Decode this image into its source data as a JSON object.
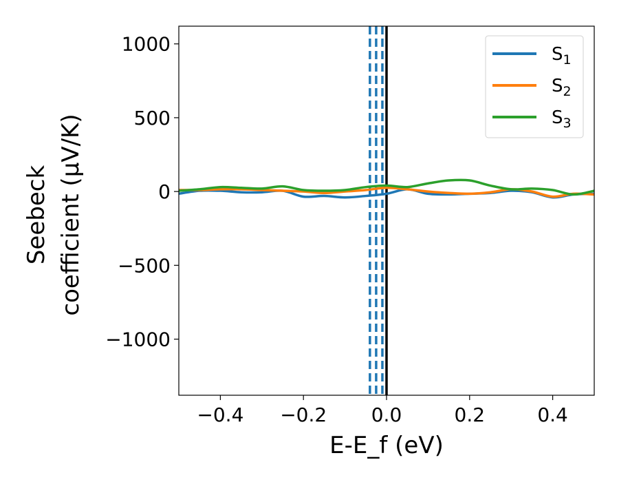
{
  "chart_data": {
    "type": "line",
    "xlabel": "E-E_f (eV)",
    "ylabel_line1": "Seebeck",
    "ylabel_line2": "coefficient  (μV/K)",
    "xlim": [
      -0.5,
      0.5
    ],
    "ylim": [
      -1380,
      1120
    ],
    "xticks": [
      -0.4,
      -0.2,
      0.0,
      0.2,
      0.4
    ],
    "xtick_labels": [
      "−0.4",
      "−0.2",
      "0.0",
      "0.2",
      "0.4"
    ],
    "yticks": [
      -1000,
      -500,
      0,
      500,
      1000
    ],
    "ytick_labels": [
      "−1000",
      "−500",
      "0",
      "500",
      "1000"
    ],
    "grid": false,
    "legend_position": "top-right",
    "vlines": [
      {
        "x": -0.04,
        "style": "dashed",
        "color": "#1f77b4"
      },
      {
        "x": -0.025,
        "style": "dashed",
        "color": "#1f77b4"
      },
      {
        "x": -0.01,
        "style": "dashed",
        "color": "#1f77b4"
      },
      {
        "x": 0.0,
        "style": "solid",
        "color": "#000000"
      }
    ],
    "x": [
      -0.5,
      -0.45,
      -0.4,
      -0.35,
      -0.3,
      -0.25,
      -0.2,
      -0.15,
      -0.1,
      -0.05,
      0.0,
      0.05,
      0.1,
      0.15,
      0.2,
      0.25,
      0.3,
      0.35,
      0.4,
      0.45,
      0.5
    ],
    "series": [
      {
        "name": "S",
        "sub": "1",
        "color": "#1f77b4",
        "values": [
          -15,
          5,
          5,
          -5,
          -5,
          5,
          -35,
          -30,
          -40,
          -30,
          -15,
          15,
          -15,
          -20,
          -15,
          -10,
          5,
          -5,
          -40,
          -20,
          -15
        ]
      },
      {
        "name": "S",
        "sub": "2",
        "color": "#ff7f0e",
        "values": [
          10,
          10,
          15,
          15,
          10,
          5,
          0,
          -10,
          0,
          10,
          25,
          15,
          0,
          -10,
          -15,
          -5,
          15,
          0,
          -35,
          -15,
          -20
        ]
      },
      {
        "name": "S",
        "sub": "3",
        "color": "#2ca02c",
        "values": [
          5,
          15,
          30,
          25,
          20,
          35,
          10,
          5,
          10,
          30,
          40,
          30,
          55,
          75,
          75,
          40,
          15,
          20,
          10,
          -20,
          5
        ]
      }
    ]
  }
}
